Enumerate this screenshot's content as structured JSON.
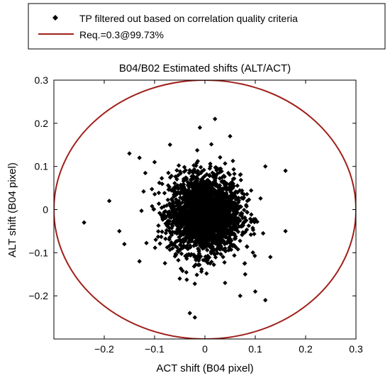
{
  "chart_data": {
    "type": "scatter",
    "title": "B04/B02 Estimated shifts (ALT/ACT)",
    "xlabel": "ACT shift (B04 pixel)",
    "ylabel": "ALT shift (B04 pixel)",
    "xlim": [
      -0.3,
      0.3
    ],
    "ylim": [
      -0.3,
      0.3
    ],
    "x_ticks": [
      -0.2,
      -0.1,
      0,
      0.1,
      0.2,
      0.3
    ],
    "x_tick_labels": [
      "−0.2",
      "−0.1",
      "0",
      "0.1",
      "0.2",
      "0.3"
    ],
    "y_ticks": [
      -0.2,
      -0.1,
      0,
      0.1,
      0.2,
      0.3
    ],
    "y_tick_labels": [
      "−0.2",
      "−0.1",
      "0",
      "0.1",
      "0.2",
      "0.3"
    ],
    "grid": false,
    "legend_position": "top-center, outside axes",
    "legend": [
      {
        "label": "TP filtered out based on correlation quality criteria",
        "marker": "diamond",
        "color": "#000000"
      },
      {
        "label": "Req.=0.3@99.73%",
        "marker": "line",
        "color": "#a0201a"
      }
    ],
    "circle": {
      "center": [
        0,
        0
      ],
      "radius": 0.3,
      "color": "#a0201a"
    },
    "cluster": {
      "x_mean": 0.0,
      "y_mean": -0.01,
      "x_std": 0.035,
      "y_std": 0.045,
      "approx_points": 2500
    },
    "outliers": [
      {
        "x": -0.24,
        "y": -0.03
      },
      {
        "x": -0.19,
        "y": 0.02
      },
      {
        "x": -0.15,
        "y": 0.13
      },
      {
        "x": -0.13,
        "y": 0.12
      },
      {
        "x": -0.1,
        "y": 0.11
      },
      {
        "x": -0.17,
        "y": -0.05
      },
      {
        "x": -0.16,
        "y": -0.08
      },
      {
        "x": -0.13,
        "y": -0.12
      },
      {
        "x": 0.02,
        "y": 0.21
      },
      {
        "x": -0.01,
        "y": 0.19
      },
      {
        "x": 0.05,
        "y": 0.17
      },
      {
        "x": 0.16,
        "y": 0.09
      },
      {
        "x": 0.12,
        "y": 0.1
      },
      {
        "x": 0.16,
        "y": -0.05
      },
      {
        "x": 0.13,
        "y": -0.11
      },
      {
        "x": 0.12,
        "y": -0.21
      },
      {
        "x": 0.1,
        "y": -0.19
      },
      {
        "x": 0.07,
        "y": -0.2
      },
      {
        "x": -0.03,
        "y": -0.24
      },
      {
        "x": -0.02,
        "y": -0.25
      },
      {
        "x": 0.04,
        "y": -0.17
      },
      {
        "x": -0.05,
        "y": -0.16
      },
      {
        "x": 0.08,
        "y": -0.15
      }
    ]
  }
}
